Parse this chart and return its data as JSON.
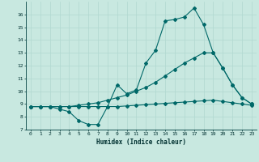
{
  "title": "",
  "xlabel": "Humidex (Indice chaleur)",
  "ylabel": "",
  "bg_color": "#c8e8e0",
  "grid_color": "#b0d8d0",
  "line_color": "#006868",
  "xlim": [
    -0.5,
    23.5
  ],
  "ylim": [
    7,
    17
  ],
  "yticks": [
    7,
    8,
    9,
    10,
    11,
    12,
    13,
    14,
    15,
    16
  ],
  "xticks": [
    0,
    1,
    2,
    3,
    4,
    5,
    6,
    7,
    8,
    9,
    10,
    11,
    12,
    13,
    14,
    15,
    16,
    17,
    18,
    19,
    20,
    21,
    22,
    23
  ],
  "line1_x": [
    0,
    1,
    2,
    3,
    4,
    5,
    6,
    7,
    8,
    9,
    10,
    11,
    12,
    13,
    14,
    15,
    16,
    17,
    18,
    19,
    20,
    21,
    22,
    23
  ],
  "line1_y": [
    8.8,
    8.8,
    8.8,
    8.6,
    8.4,
    7.7,
    7.4,
    7.4,
    8.8,
    10.5,
    9.8,
    10.1,
    12.2,
    13.2,
    15.5,
    15.6,
    15.8,
    16.5,
    15.2,
    13.0,
    11.8,
    10.5,
    9.5,
    9.0
  ],
  "line2_x": [
    0,
    1,
    2,
    3,
    4,
    5,
    6,
    7,
    8,
    9,
    10,
    11,
    12,
    13,
    14,
    15,
    16,
    17,
    18,
    19,
    20,
    21,
    22,
    23
  ],
  "line2_y": [
    8.8,
    8.8,
    8.8,
    8.8,
    8.8,
    8.9,
    9.0,
    9.1,
    9.3,
    9.5,
    9.7,
    10.0,
    10.3,
    10.7,
    11.2,
    11.7,
    12.2,
    12.6,
    13.0,
    13.0,
    11.8,
    10.5,
    9.5,
    9.0
  ],
  "line3_x": [
    0,
    1,
    2,
    3,
    4,
    5,
    6,
    7,
    8,
    9,
    10,
    11,
    12,
    13,
    14,
    15,
    16,
    17,
    18,
    19,
    20,
    21,
    22,
    23
  ],
  "line3_y": [
    8.8,
    8.8,
    8.8,
    8.8,
    8.8,
    8.8,
    8.8,
    8.8,
    8.8,
    8.8,
    8.85,
    8.9,
    8.95,
    9.0,
    9.05,
    9.1,
    9.15,
    9.2,
    9.25,
    9.3,
    9.2,
    9.1,
    9.0,
    8.9
  ]
}
